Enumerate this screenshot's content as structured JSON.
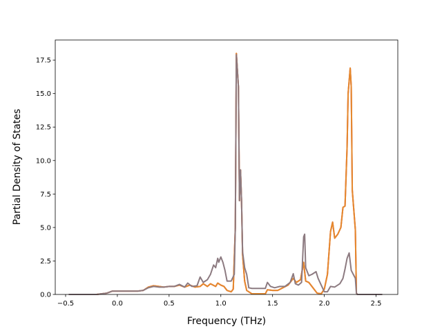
{
  "chart_data": {
    "type": "line",
    "title": "",
    "xlabel": "Frequency (THz)",
    "ylabel": "Partial Density of States",
    "xlim": [
      -0.6,
      2.71
    ],
    "ylim": [
      0,
      19
    ],
    "xticks": [
      -0.5,
      0.0,
      0.5,
      1.0,
      1.5,
      2.0,
      2.5
    ],
    "xtick_labels": [
      "−0.5",
      "0.0",
      "0.5",
      "1.0",
      "1.5",
      "2.0",
      "2.5"
    ],
    "yticks": [
      0.0,
      2.5,
      5.0,
      7.5,
      10.0,
      12.5,
      15.0,
      17.5
    ],
    "ytick_labels": [
      "0.0",
      "2.5",
      "5.0",
      "7.5",
      "10.0",
      "12.5",
      "15.0",
      "17.5"
    ],
    "grid": false,
    "legend": "none",
    "series": [
      {
        "color": "#d62728",
        "points": [
          [
            -0.47,
            0
          ],
          [
            -0.2,
            0
          ],
          [
            -0.1,
            0.1
          ],
          [
            -0.05,
            0.25
          ],
          [
            0.2,
            0.25
          ],
          [
            0.25,
            0.3
          ],
          [
            0.3,
            0.55
          ],
          [
            0.35,
            0.65
          ],
          [
            0.4,
            0.6
          ],
          [
            0.45,
            0.55
          ],
          [
            0.5,
            0.6
          ],
          [
            0.55,
            0.6
          ],
          [
            0.6,
            0.7
          ],
          [
            0.65,
            0.55
          ],
          [
            0.7,
            0.7
          ],
          [
            0.75,
            0.55
          ],
          [
            0.8,
            0.6
          ],
          [
            0.83,
            0.8
          ],
          [
            0.87,
            0.6
          ],
          [
            0.9,
            0.8
          ],
          [
            0.95,
            0.6
          ],
          [
            0.97,
            0.85
          ],
          [
            1.0,
            0.7
          ],
          [
            1.03,
            0.6
          ],
          [
            1.06,
            0.3
          ],
          [
            1.08,
            0.25
          ],
          [
            1.1,
            0.2
          ],
          [
            1.12,
            0.4
          ],
          [
            1.14,
            5.0
          ],
          [
            1.15,
            18.0
          ],
          [
            1.17,
            15.5
          ],
          [
            1.18,
            7.0
          ],
          [
            1.19,
            9.3
          ],
          [
            1.2,
            7.0
          ],
          [
            1.21,
            3.0
          ],
          [
            1.23,
            1.0
          ],
          [
            1.25,
            0.3
          ],
          [
            1.3,
            0.05
          ],
          [
            1.43,
            0.05
          ],
          [
            1.45,
            0.35
          ],
          [
            1.5,
            0.3
          ],
          [
            1.55,
            0.3
          ],
          [
            1.6,
            0.5
          ],
          [
            1.65,
            0.7
          ],
          [
            1.7,
            1.2
          ],
          [
            1.73,
            0.9
          ],
          [
            1.77,
            1.1
          ],
          [
            1.8,
            2.4
          ],
          [
            1.82,
            1.0
          ],
          [
            1.85,
            0.9
          ],
          [
            1.9,
            0.4
          ],
          [
            1.93,
            0.1
          ],
          [
            1.97,
            0.05
          ],
          [
            2.0,
            0.4
          ],
          [
            2.03,
            1.5
          ],
          [
            2.06,
            4.7
          ],
          [
            2.08,
            5.4
          ],
          [
            2.1,
            4.2
          ],
          [
            2.13,
            4.5
          ],
          [
            2.16,
            5.0
          ],
          [
            2.18,
            6.5
          ],
          [
            2.2,
            6.6
          ],
          [
            2.22,
            11.0
          ],
          [
            2.23,
            15.0
          ],
          [
            2.25,
            16.9
          ],
          [
            2.26,
            15.5
          ],
          [
            2.27,
            7.8
          ],
          [
            2.28,
            6.8
          ],
          [
            2.3,
            4.8
          ],
          [
            2.31,
            0.1
          ],
          [
            2.32,
            0
          ],
          [
            2.56,
            0
          ]
        ]
      },
      {
        "color": "#e58a2e",
        "points": [
          [
            -0.47,
            0
          ],
          [
            -0.2,
            0
          ],
          [
            -0.1,
            0.1
          ],
          [
            -0.05,
            0.25
          ],
          [
            0.2,
            0.25
          ],
          [
            0.25,
            0.3
          ],
          [
            0.3,
            0.55
          ],
          [
            0.35,
            0.65
          ],
          [
            0.4,
            0.6
          ],
          [
            0.45,
            0.55
          ],
          [
            0.5,
            0.6
          ],
          [
            0.55,
            0.6
          ],
          [
            0.6,
            0.7
          ],
          [
            0.65,
            0.55
          ],
          [
            0.7,
            0.7
          ],
          [
            0.75,
            0.55
          ],
          [
            0.8,
            0.6
          ],
          [
            0.83,
            0.8
          ],
          [
            0.87,
            0.6
          ],
          [
            0.9,
            0.8
          ],
          [
            0.95,
            0.6
          ],
          [
            0.97,
            0.85
          ],
          [
            1.0,
            0.7
          ],
          [
            1.03,
            0.6
          ],
          [
            1.06,
            0.3
          ],
          [
            1.08,
            0.25
          ],
          [
            1.1,
            0.2
          ],
          [
            1.12,
            0.4
          ],
          [
            1.14,
            5.0
          ],
          [
            1.15,
            18.0
          ],
          [
            1.17,
            15.5
          ],
          [
            1.18,
            7.0
          ],
          [
            1.19,
            9.3
          ],
          [
            1.2,
            7.0
          ],
          [
            1.21,
            3.0
          ],
          [
            1.23,
            1.0
          ],
          [
            1.25,
            0.3
          ],
          [
            1.3,
            0.05
          ],
          [
            1.43,
            0.05
          ],
          [
            1.45,
            0.35
          ],
          [
            1.5,
            0.3
          ],
          [
            1.55,
            0.3
          ],
          [
            1.6,
            0.5
          ],
          [
            1.65,
            0.7
          ],
          [
            1.7,
            1.2
          ],
          [
            1.73,
            0.9
          ],
          [
            1.77,
            1.1
          ],
          [
            1.8,
            2.4
          ],
          [
            1.82,
            1.0
          ],
          [
            1.85,
            0.9
          ],
          [
            1.9,
            0.4
          ],
          [
            1.93,
            0.1
          ],
          [
            1.97,
            0.05
          ],
          [
            2.0,
            0.4
          ],
          [
            2.03,
            1.5
          ],
          [
            2.06,
            4.7
          ],
          [
            2.08,
            5.4
          ],
          [
            2.1,
            4.2
          ],
          [
            2.13,
            4.5
          ],
          [
            2.16,
            5.0
          ],
          [
            2.18,
            6.5
          ],
          [
            2.2,
            6.6
          ],
          [
            2.22,
            11.0
          ],
          [
            2.23,
            15.0
          ],
          [
            2.25,
            16.9
          ],
          [
            2.26,
            15.5
          ],
          [
            2.27,
            7.8
          ],
          [
            2.28,
            6.8
          ],
          [
            2.3,
            4.8
          ],
          [
            2.31,
            0.1
          ],
          [
            2.32,
            0
          ],
          [
            2.56,
            0
          ]
        ]
      },
      {
        "color": "#8c7a80",
        "points": [
          [
            -0.47,
            0
          ],
          [
            -0.2,
            0
          ],
          [
            -0.1,
            0.1
          ],
          [
            -0.05,
            0.25
          ],
          [
            0.2,
            0.25
          ],
          [
            0.25,
            0.3
          ],
          [
            0.3,
            0.5
          ],
          [
            0.35,
            0.6
          ],
          [
            0.4,
            0.55
          ],
          [
            0.45,
            0.55
          ],
          [
            0.5,
            0.6
          ],
          [
            0.55,
            0.6
          ],
          [
            0.6,
            0.75
          ],
          [
            0.65,
            0.55
          ],
          [
            0.68,
            0.85
          ],
          [
            0.72,
            0.6
          ],
          [
            0.77,
            0.65
          ],
          [
            0.8,
            1.3
          ],
          [
            0.83,
            0.9
          ],
          [
            0.87,
            1.1
          ],
          [
            0.9,
            1.5
          ],
          [
            0.93,
            2.2
          ],
          [
            0.95,
            2.0
          ],
          [
            0.97,
            2.7
          ],
          [
            0.98,
            2.4
          ],
          [
            1.0,
            2.8
          ],
          [
            1.02,
            2.4
          ],
          [
            1.04,
            1.8
          ],
          [
            1.06,
            1.0
          ],
          [
            1.1,
            1.0
          ],
          [
            1.13,
            1.5
          ],
          [
            1.14,
            5.0
          ],
          [
            1.15,
            17.9
          ],
          [
            1.17,
            15.5
          ],
          [
            1.18,
            7.0
          ],
          [
            1.19,
            9.3
          ],
          [
            1.2,
            7.0
          ],
          [
            1.21,
            3.2
          ],
          [
            1.23,
            2.0
          ],
          [
            1.25,
            1.5
          ],
          [
            1.27,
            0.5
          ],
          [
            1.3,
            0.45
          ],
          [
            1.43,
            0.45
          ],
          [
            1.45,
            0.9
          ],
          [
            1.48,
            0.6
          ],
          [
            1.52,
            0.5
          ],
          [
            1.57,
            0.6
          ],
          [
            1.62,
            0.6
          ],
          [
            1.67,
            0.9
          ],
          [
            1.7,
            1.55
          ],
          [
            1.72,
            0.8
          ],
          [
            1.75,
            0.7
          ],
          [
            1.78,
            0.9
          ],
          [
            1.8,
            4.3
          ],
          [
            1.81,
            4.5
          ],
          [
            1.82,
            2.0
          ],
          [
            1.85,
            1.4
          ],
          [
            1.88,
            1.5
          ],
          [
            1.92,
            1.7
          ],
          [
            1.94,
            1.2
          ],
          [
            1.97,
            0.7
          ],
          [
            2.0,
            0.2
          ],
          [
            2.03,
            0.2
          ],
          [
            2.06,
            0.6
          ],
          [
            2.1,
            0.55
          ],
          [
            2.15,
            0.8
          ],
          [
            2.18,
            1.2
          ],
          [
            2.2,
            1.9
          ],
          [
            2.22,
            2.7
          ],
          [
            2.24,
            3.1
          ],
          [
            2.26,
            1.8
          ],
          [
            2.28,
            1.5
          ],
          [
            2.3,
            1.2
          ],
          [
            2.31,
            0.1
          ],
          [
            2.32,
            0
          ],
          [
            2.56,
            0
          ]
        ]
      }
    ]
  }
}
